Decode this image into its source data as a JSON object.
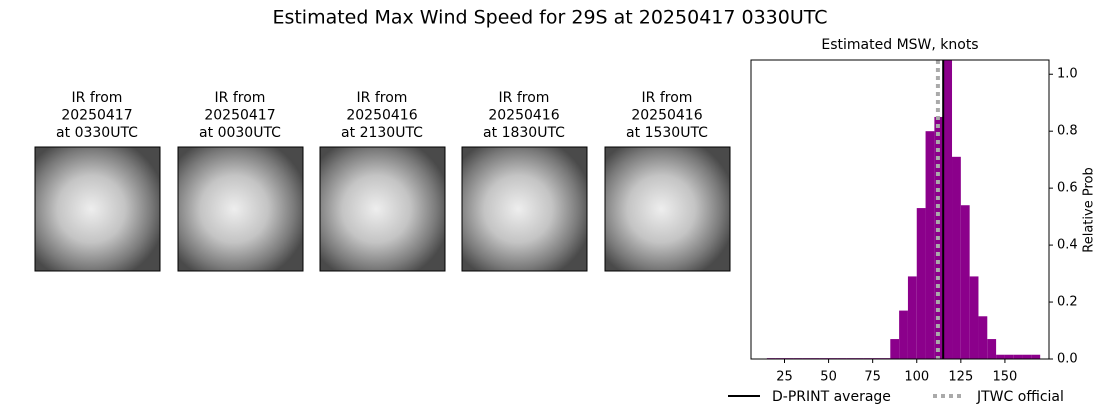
{
  "title": "Estimated Max Wind Speed for 29S at 20250417 0330UTC",
  "panels": [
    {
      "label": [
        "IR from",
        "20250417",
        "at 0330UTC"
      ]
    },
    {
      "label": [
        "IR from",
        "20250417",
        "at 0030UTC"
      ]
    },
    {
      "label": [
        "IR from",
        "20250416",
        "at 2130UTC"
      ]
    },
    {
      "label": [
        "IR from",
        "20250416",
        "at 1830UTC"
      ]
    },
    {
      "label": [
        "IR from",
        "20250416",
        "at 1530UTC"
      ]
    }
  ],
  "chart_data": {
    "type": "histogram",
    "title": "Estimated MSW, knots",
    "y2label": "Relative Prob",
    "bins": [
      15,
      20,
      25,
      30,
      35,
      40,
      45,
      50,
      55,
      60,
      65,
      70,
      75,
      80,
      85,
      90,
      95,
      100,
      105,
      110,
      115,
      120,
      125,
      130,
      135,
      140,
      145,
      150,
      155,
      160,
      165,
      170
    ],
    "values": [
      0.003,
      0.003,
      0.003,
      0.003,
      0.003,
      0.003,
      0.003,
      0.003,
      0.003,
      0.003,
      0.003,
      0.003,
      0.003,
      0.003,
      0.07,
      0.17,
      0.29,
      0.53,
      0.8,
      0.85,
      1.05,
      0.71,
      0.54,
      0.29,
      0.15,
      0.07,
      0.015,
      0.015,
      0.015,
      0.015,
      0.015
    ],
    "color": "#8b008b",
    "xlim": [
      6,
      175
    ],
    "xticks": [
      25,
      50,
      75,
      100,
      125,
      150
    ],
    "ylim": [
      0,
      1.05
    ],
    "yticks": [
      {
        "value": 0,
        "label": "0.0"
      },
      0.2,
      0.4,
      0.6,
      0.8,
      {
        "value": 1,
        "label": "1.0"
      }
    ],
    "lines": [
      {
        "name": "D-PRINT average",
        "x": 115,
        "color": "#000000",
        "style": "solid"
      },
      {
        "name": "JTWC official",
        "x": 112,
        "color": "#aaaaaa",
        "style": "dotted"
      }
    ]
  }
}
